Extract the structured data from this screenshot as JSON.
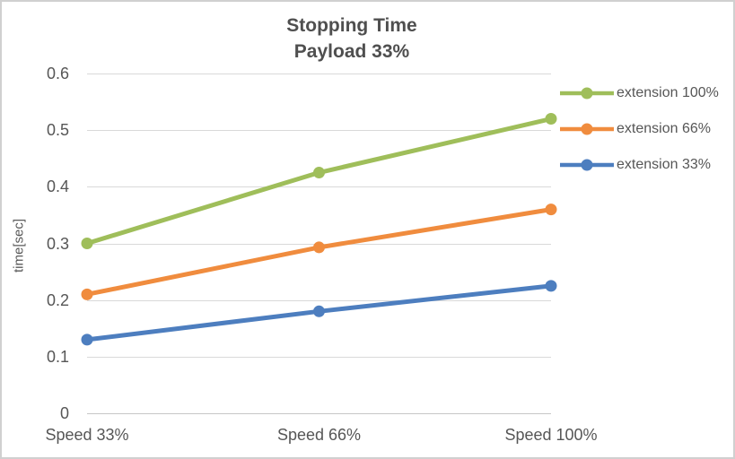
{
  "chart_data": {
    "type": "line",
    "title": "Stopping Time",
    "subtitle": "Payload 33%",
    "xlabel": "",
    "ylabel": "time[sec]",
    "categories": [
      "Speed 33%",
      "Speed 66%",
      "Speed 100%"
    ],
    "series": [
      {
        "name": "extension 100%",
        "color": "#9FBE5A",
        "values": [
          0.3,
          0.425,
          0.52
        ]
      },
      {
        "name": "extension 66%",
        "color": "#F08C3E",
        "values": [
          0.21,
          0.293,
          0.36
        ]
      },
      {
        "name": "extension 33%",
        "color": "#4D7EBF",
        "values": [
          0.13,
          0.18,
          0.225
        ]
      }
    ],
    "ylim": [
      0,
      0.6
    ],
    "yticks": [
      {
        "value": 0,
        "label": "0"
      },
      {
        "value": 0.1,
        "label": "0.1"
      },
      {
        "value": 0.2,
        "label": "0.2"
      },
      {
        "value": 0.3,
        "label": "0.3"
      },
      {
        "value": 0.4,
        "label": "0.4"
      },
      {
        "value": 0.5,
        "label": "0.5"
      },
      {
        "value": 0.6,
        "label": "0.6"
      }
    ],
    "grid": true,
    "legend_position": "right",
    "marker": "circle"
  },
  "style": {
    "text_color": "#565656",
    "grid_color": "#D9D9D9",
    "border_color": "#D0D0D0",
    "background": "#FFFFFF"
  }
}
